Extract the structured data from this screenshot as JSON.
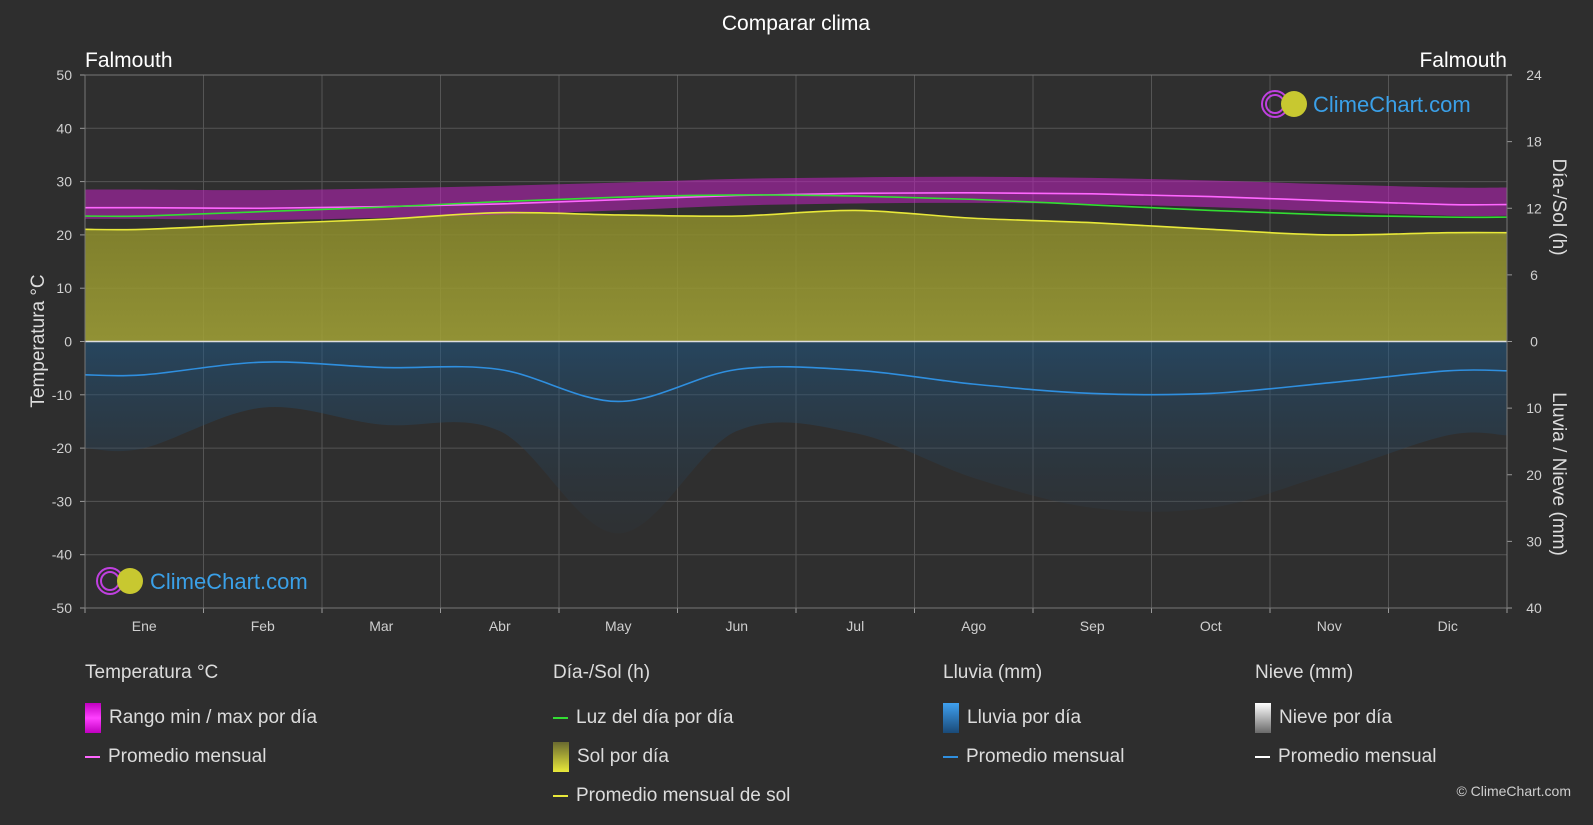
{
  "chart_data": {
    "type": "area",
    "title": "Comparar clima",
    "location_left": "Falmouth",
    "location_right": "Falmouth",
    "y_left_label": "Temperatura °C",
    "y_left_ticks": [
      50,
      40,
      30,
      20,
      10,
      0,
      -10,
      -20,
      -30,
      -40,
      -50
    ],
    "y_right_top_label": "Día-/Sol (h)",
    "y_right_top_ticks": [
      24,
      18,
      12,
      6,
      0
    ],
    "y_right_bottom_label": "Lluvia / Nieve (mm)",
    "y_right_bottom_ticks": [
      0,
      10,
      20,
      30,
      40
    ],
    "months": [
      "Ene",
      "Feb",
      "Mar",
      "Abr",
      "May",
      "Jun",
      "Jul",
      "Ago",
      "Sep",
      "Oct",
      "Nov",
      "Dic"
    ],
    "series": [
      {
        "name": "Promedio mensual",
        "group": "Temperatura °C",
        "unit": "°C",
        "color": "#ff66ff",
        "values": [
          25.1,
          25.0,
          25.3,
          25.8,
          26.6,
          27.4,
          27.8,
          27.9,
          27.7,
          27.2,
          26.4,
          25.7
        ]
      },
      {
        "name": "Luz del día por día",
        "group": "Día-/Sol (h)",
        "unit": "h",
        "color": "#33dd33",
        "values": [
          11.3,
          11.7,
          12.1,
          12.6,
          13.0,
          13.2,
          13.1,
          12.8,
          12.3,
          11.8,
          11.4,
          11.2
        ]
      },
      {
        "name": "Promedio mensual de sol",
        "group": "Día-/Sol (h)",
        "unit": "h",
        "color": "#e8e83a",
        "values": [
          10.1,
          10.6,
          11.0,
          11.6,
          11.4,
          11.3,
          11.8,
          11.1,
          10.7,
          10.1,
          9.6,
          9.8
        ]
      },
      {
        "name": "Promedio mensual",
        "group": "Lluvia (mm)",
        "unit": "mm",
        "color": "#2f8fdf",
        "values": [
          5.0,
          3.1,
          3.9,
          4.2,
          9.0,
          4.2,
          4.3,
          6.4,
          7.8,
          7.8,
          6.2,
          4.4
        ]
      }
    ],
    "temperature_range_band": {
      "min": [
        23.0,
        22.8,
        23.2,
        23.8,
        24.6,
        25.5,
        25.9,
        26.0,
        25.8,
        25.2,
        24.4,
        23.6
      ],
      "max": [
        28.5,
        28.4,
        28.7,
        29.2,
        29.8,
        30.5,
        30.8,
        30.9,
        30.7,
        30.2,
        29.5,
        28.9
      ]
    },
    "ylim_temperature": [
      -50,
      50
    ],
    "ylim_sun": [
      0,
      24
    ],
    "ylim_rain": [
      0,
      40
    ],
    "grid": true
  },
  "legend": {
    "temp_head": "Temperatura °C",
    "temp_range": "Rango min / max por día",
    "temp_avg": "Promedio mensual",
    "sun_head": "Día-/Sol (h)",
    "daylight": "Luz del día por día",
    "sun_day": "Sol por día",
    "sun_avg": "Promedio mensual de sol",
    "rain_head": "Lluvia (mm)",
    "rain_day": "Lluvia por día",
    "rain_avg": "Promedio mensual",
    "snow_head": "Nieve (mm)",
    "snow_day": "Nieve por día",
    "snow_avg": "Promedio mensual"
  },
  "watermark": "ClimeChart.com",
  "copyright": "© ClimeChart.com",
  "colors": {
    "daylight": "#33dd33",
    "sun": "#e8e83a",
    "temp": "#ff66ff",
    "rain": "#2f8fdf",
    "snow": "#ffffff"
  }
}
